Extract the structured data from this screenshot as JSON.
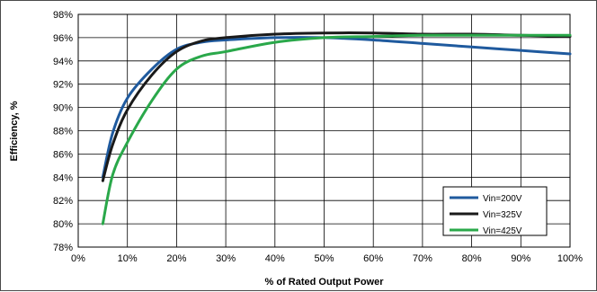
{
  "chart_data": {
    "type": "line",
    "title": "",
    "xlabel": "% of Rated Output Power",
    "ylabel": "Efficiency, %",
    "xlim": [
      0,
      100
    ],
    "ylim": [
      78,
      98
    ],
    "x_ticks": [
      0,
      10,
      20,
      30,
      40,
      50,
      60,
      70,
      80,
      90,
      100
    ],
    "x_tick_labels": [
      "0%",
      "10%",
      "20%",
      "30%",
      "40%",
      "50%",
      "60%",
      "70%",
      "80%",
      "90%",
      "100%"
    ],
    "y_ticks": [
      78,
      80,
      82,
      84,
      86,
      88,
      90,
      92,
      94,
      96,
      98
    ],
    "y_tick_labels": [
      "78%",
      "80%",
      "82%",
      "84%",
      "86%",
      "88%",
      "90%",
      "92%",
      "94%",
      "96%",
      "98%"
    ],
    "grid": true,
    "legend_position": "bottom-right",
    "series": [
      {
        "name": "Vin=200V",
        "color": "#1f5a9e",
        "x": [
          5,
          7,
          10,
          15,
          20,
          25,
          30,
          40,
          50,
          60,
          70,
          80,
          90,
          100
        ],
        "y": [
          84.0,
          87.8,
          90.8,
          93.3,
          95.0,
          95.6,
          95.8,
          96.0,
          96.0,
          95.8,
          95.5,
          95.2,
          94.9,
          94.6
        ]
      },
      {
        "name": "Vin=325V",
        "color": "#1a1a1a",
        "x": [
          5,
          7,
          10,
          15,
          20,
          25,
          30,
          40,
          50,
          60,
          70,
          80,
          90,
          100
        ],
        "y": [
          83.7,
          86.8,
          89.8,
          92.8,
          94.8,
          95.7,
          96.0,
          96.3,
          96.4,
          96.4,
          96.3,
          96.3,
          96.2,
          96.1
        ]
      },
      {
        "name": "Vin=425V",
        "color": "#2aa84a",
        "x": [
          5,
          7,
          10,
          15,
          20,
          25,
          30,
          40,
          50,
          60,
          70,
          80,
          90,
          100
        ],
        "y": [
          80.0,
          84.2,
          87.0,
          90.6,
          93.3,
          94.4,
          94.8,
          95.6,
          96.0,
          96.1,
          96.2,
          96.2,
          96.2,
          96.2
        ]
      }
    ]
  }
}
